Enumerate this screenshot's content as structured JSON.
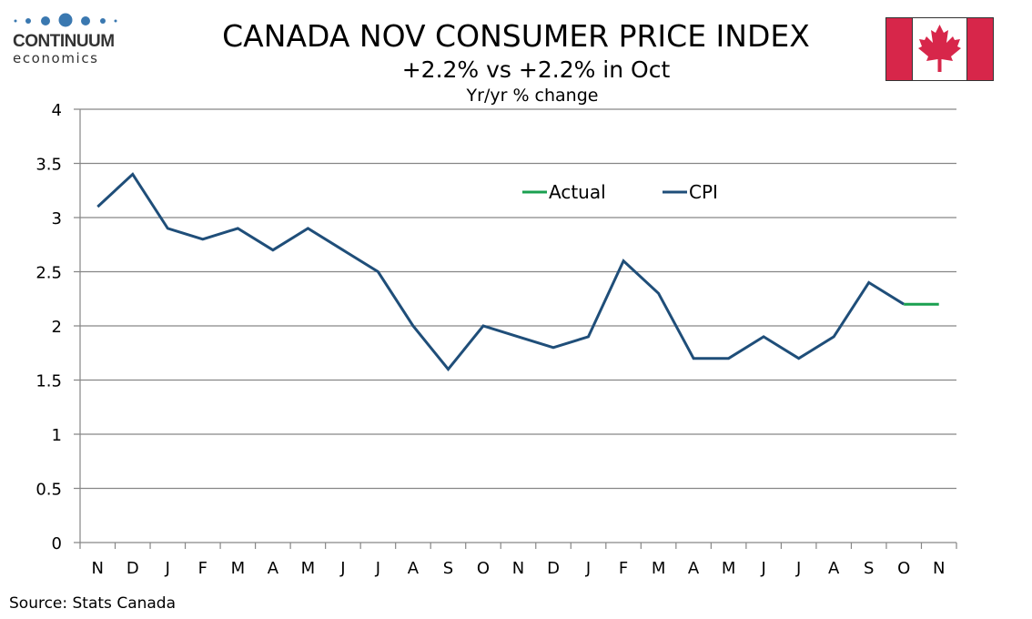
{
  "logo": {
    "name": "CONTINUUM",
    "sub": "economics",
    "color": "#3a78b0"
  },
  "header": {
    "title": "CANADA NOV CONSUMER PRICE INDEX",
    "subtitle": "+2.2% vs +2.2% in Oct",
    "subsubtitle": "Yr/yr % change",
    "flag": "canada-flag"
  },
  "footer": {
    "source": "Source: Stats Canada"
  },
  "chart_data": {
    "type": "line",
    "title": "CANADA NOV CONSUMER PRICE INDEX",
    "subtitle": "+2.2% vs +2.2% in Oct",
    "ylabel": "Yr/yr % change",
    "xlabel": "",
    "ylim": [
      0,
      4
    ],
    "yticks": [
      0,
      0.5,
      1,
      1.5,
      2,
      2.5,
      3,
      3.5,
      4
    ],
    "ytick_labels": [
      "0",
      "0.5",
      "1",
      "1.5",
      "2",
      "2.5",
      "3",
      "3.5",
      "4"
    ],
    "grid": true,
    "legend_position": "upper-center-right",
    "categories": [
      "N",
      "D",
      "J",
      "F",
      "M",
      "A",
      "M",
      "J",
      "J",
      "A",
      "S",
      "O",
      "N",
      "D",
      "J",
      "F",
      "M",
      "A",
      "M",
      "J",
      "J",
      "A",
      "S",
      "O",
      "N"
    ],
    "series": [
      {
        "name": "Actual",
        "color": "#1aa050",
        "values": [
          null,
          null,
          null,
          null,
          null,
          null,
          null,
          null,
          null,
          null,
          null,
          null,
          null,
          null,
          null,
          null,
          null,
          null,
          null,
          null,
          null,
          null,
          null,
          2.2,
          2.2
        ]
      },
      {
        "name": "CPI",
        "color": "#1f4e79",
        "values": [
          3.1,
          3.4,
          2.9,
          2.8,
          2.9,
          2.7,
          2.9,
          2.7,
          2.5,
          2.0,
          1.6,
          2.0,
          1.9,
          1.8,
          1.9,
          2.6,
          2.3,
          1.7,
          1.7,
          1.9,
          1.7,
          1.9,
          2.4,
          2.2,
          null
        ]
      }
    ],
    "legend": [
      "Actual",
      "CPI"
    ]
  }
}
